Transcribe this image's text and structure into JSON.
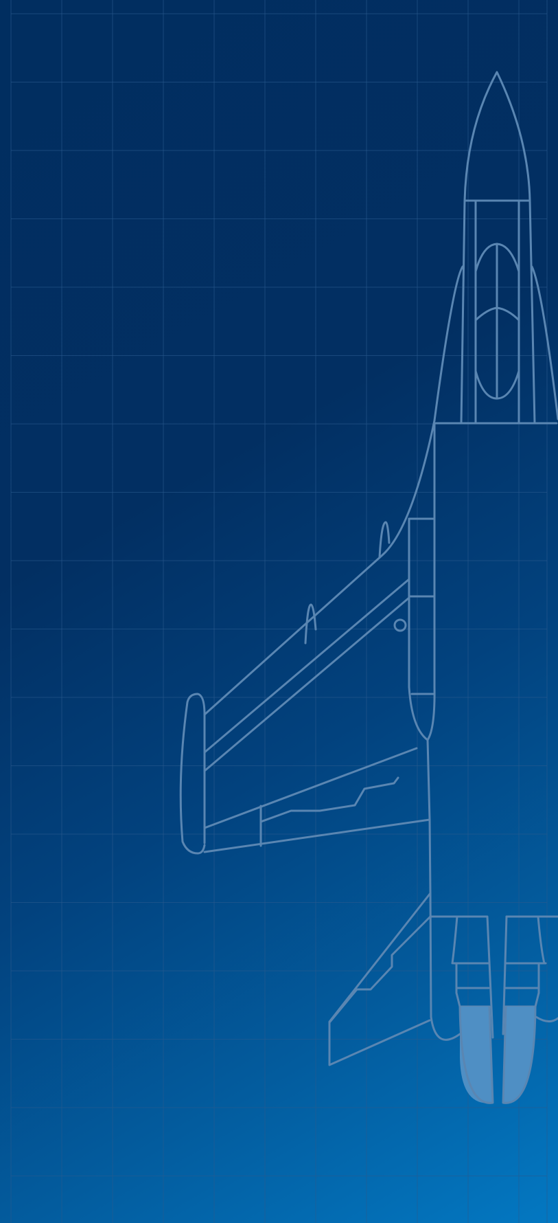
{
  "artwork": {
    "subject": "rocket-blueprint",
    "colors": {
      "background_top": "#012e60",
      "background_bottom": "#0378c2",
      "grid_line": "#2a5a8e",
      "outline": "#5a86b2",
      "flame": "#4f8fc4"
    }
  }
}
